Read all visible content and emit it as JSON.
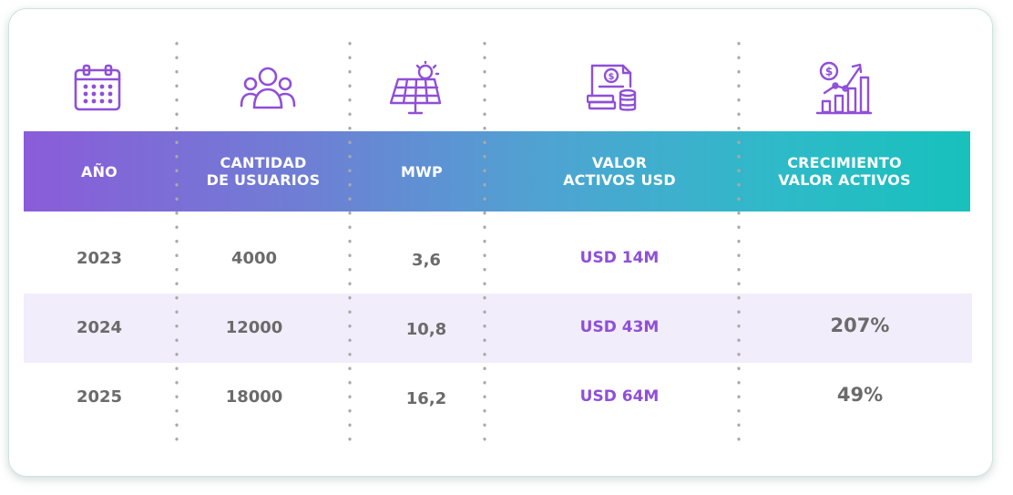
{
  "columns": [
    {
      "key": "year",
      "header": "AÑO",
      "icon": "calendar-icon"
    },
    {
      "key": "users",
      "header": "CANTIDAD\nDE USUARIOS",
      "icon": "users-icon"
    },
    {
      "key": "mwp",
      "header": "MWP",
      "icon": "solar-panel-icon"
    },
    {
      "key": "assets",
      "header": "VALOR\nACTIVOS USD",
      "icon": "document-money-icon"
    },
    {
      "key": "growth",
      "header": "CRECIMIENTO\nVALOR ACTIVOS",
      "icon": "growth-chart-icon"
    }
  ],
  "rows": [
    {
      "year": "2023",
      "users": "4000",
      "mwp": "3,6",
      "assets": "USD 14M",
      "growth": ""
    },
    {
      "year": "2024",
      "users": "12000",
      "mwp": "10,8",
      "assets": "USD 43M",
      "growth": "207%"
    },
    {
      "year": "2025",
      "users": "18000",
      "mwp": "16,2",
      "assets": "USD 64M",
      "growth": "49%"
    }
  ],
  "colors": {
    "accent_purple": "#8f4fd8",
    "header_gradient_start": "#8a5cd9",
    "header_gradient_end": "#17c1bc",
    "row_highlight": "#f1edfa",
    "text_gray": "#6b6b6b"
  }
}
